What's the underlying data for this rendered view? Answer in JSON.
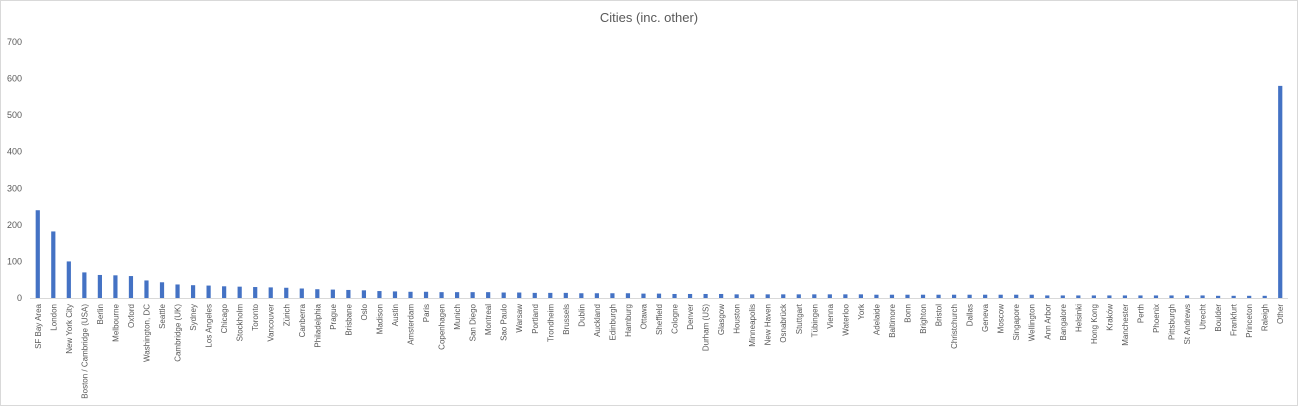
{
  "chart_data": {
    "type": "bar",
    "title": "Cities (inc. other)",
    "xlabel": "",
    "ylabel": "",
    "ylim": [
      0,
      700
    ],
    "yticks": [
      0,
      100,
      200,
      300,
      400,
      500,
      600,
      700
    ],
    "grid": false,
    "legend": "none",
    "bar_color": "#4472c4",
    "categories": [
      "SF Bay Area",
      "London",
      "New York City",
      "Boston / Cambridge (USA)",
      "Berlin",
      "Melbourne",
      "Oxford",
      "Washington, DC",
      "Seattle",
      "Cambridge (UK)",
      "Sydney",
      "Los Angeles",
      "Chicago",
      "Stockholm",
      "Toronto",
      "Vancouver",
      "Zürich",
      "Canberra",
      "Philadelphia",
      "Prague",
      "Brisbane",
      "Oslo",
      "Madison",
      "Austin",
      "Amsterdam",
      "Paris",
      "Copenhagen",
      "Munich",
      "San Diego",
      "Montreal",
      "Sao Paulo",
      "Warsaw",
      "Portland",
      "Trondheim",
      "Brussels",
      "Dublin",
      "Auckland",
      "Edinburgh",
      "Hamburg",
      "Ottawa",
      "Sheffield",
      "Cologne",
      "Denver",
      "Durham (US)",
      "Glasgow",
      "Houston",
      "Minneapolis",
      "New Haven",
      "Osnabrück",
      "Stuttgart",
      "Tübingen",
      "Vienna",
      "Waterloo",
      "York",
      "Adelaide",
      "Baltimore",
      "Bonn",
      "Brighton",
      "Bristol",
      "Christchurch",
      "Dallas",
      "Geneva",
      "Moscow",
      "Singapore",
      "Wellington",
      "Ann Arbor",
      "Bangalore",
      "Helsinki",
      "Hong Kong",
      "Kraków",
      "Manchester",
      "Perth",
      "Phoenix",
      "Pittsburgh",
      "St Andrews",
      "Utrecht",
      "Boulder",
      "Frankfurt",
      "Princeton",
      "Raleigh",
      "Other"
    ],
    "values": [
      240,
      182,
      100,
      70,
      63,
      62,
      60,
      48,
      43,
      37,
      35,
      34,
      32,
      31,
      30,
      29,
      28,
      26,
      24,
      23,
      22,
      21,
      19,
      18,
      17,
      17,
      16,
      16,
      16,
      16,
      15,
      15,
      14,
      14,
      14,
      13,
      13,
      13,
      13,
      12,
      12,
      11,
      11,
      11,
      11,
      10,
      10,
      10,
      10,
      10,
      10,
      10,
      10,
      10,
      9,
      9,
      9,
      9,
      9,
      9,
      9,
      9,
      9,
      9,
      9,
      7,
      7,
      7,
      7,
      7,
      7,
      7,
      7,
      7,
      7,
      7,
      6,
      6,
      6,
      6,
      580
    ]
  }
}
